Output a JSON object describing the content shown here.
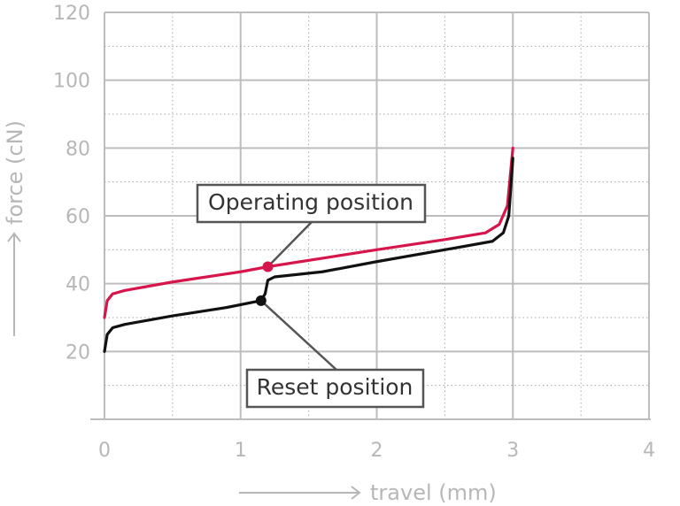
{
  "chart_data": {
    "type": "line",
    "xlabel": "travel (mm)",
    "ylabel": "force (cN)",
    "xlim": [
      0,
      4
    ],
    "ylim": [
      0,
      120
    ],
    "x_ticks": [
      "0",
      "1",
      "2",
      "3",
      "4"
    ],
    "y_ticks": [
      "20",
      "40",
      "60",
      "80",
      "100",
      "120"
    ],
    "grid": true,
    "series": [
      {
        "color": "#d6164b",
        "points": [
          [
            0,
            30
          ],
          [
            0.02,
            35
          ],
          [
            0.06,
            37
          ],
          [
            0.15,
            38
          ],
          [
            0.5,
            40.5
          ],
          [
            1.0,
            43.5
          ],
          [
            1.2,
            45
          ],
          [
            1.6,
            47.5
          ],
          [
            2.0,
            50
          ],
          [
            2.5,
            53
          ],
          [
            2.8,
            55
          ],
          [
            2.9,
            57.5
          ],
          [
            2.96,
            63
          ],
          [
            3.0,
            80
          ]
        ]
      },
      {
        "color": "#111111",
        "points": [
          [
            0,
            20
          ],
          [
            0.02,
            25
          ],
          [
            0.06,
            27
          ],
          [
            0.15,
            28
          ],
          [
            0.5,
            30.5
          ],
          [
            0.9,
            33
          ],
          [
            1.15,
            35
          ],
          [
            1.18,
            37
          ],
          [
            1.2,
            41
          ],
          [
            1.25,
            42
          ],
          [
            1.6,
            43.5
          ],
          [
            2.0,
            46.5
          ],
          [
            2.5,
            50
          ],
          [
            2.85,
            52.5
          ],
          [
            2.93,
            55
          ],
          [
            2.97,
            60
          ],
          [
            3.0,
            77
          ]
        ]
      }
    ],
    "annotations": [
      {
        "label": "Operating position",
        "x": 1.2,
        "y": 45,
        "color": "#d6164b"
      },
      {
        "label": "Reset position",
        "x": 1.15,
        "y": 35,
        "color": "#111111"
      }
    ]
  }
}
